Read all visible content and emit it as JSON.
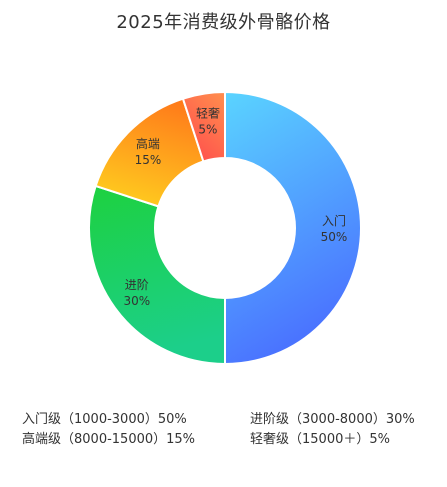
{
  "title": "2025年消费级外骨骼价格",
  "chart_data": {
    "type": "pie",
    "variant": "donut",
    "title": "2025年消费级外骨骼价格",
    "slices": [
      {
        "label": "入门",
        "value": 50,
        "pct_text": "50%",
        "legend": "入门级（1000-3000）50%",
        "color_start": "#5ad4ff",
        "color_end": "#4a72ff"
      },
      {
        "label": "进阶",
        "value": 30,
        "pct_text": "30%",
        "legend": "进阶级（3000-8000）30%",
        "color_start": "#1dd13f",
        "color_end": "#1ccf8a"
      },
      {
        "label": "高端",
        "value": 15,
        "pct_text": "15%",
        "legend": "高端级（8000-15000）15%",
        "color_start": "#ffcb1f",
        "color_end": "#ff7a1a"
      },
      {
        "label": "轻奢",
        "value": 5,
        "pct_text": "5%",
        "legend": "轻奢级（15000＋）5%",
        "color_start": "#ff4d4d",
        "color_end": "#ff8a4d"
      }
    ],
    "legend_position": "bottom"
  }
}
